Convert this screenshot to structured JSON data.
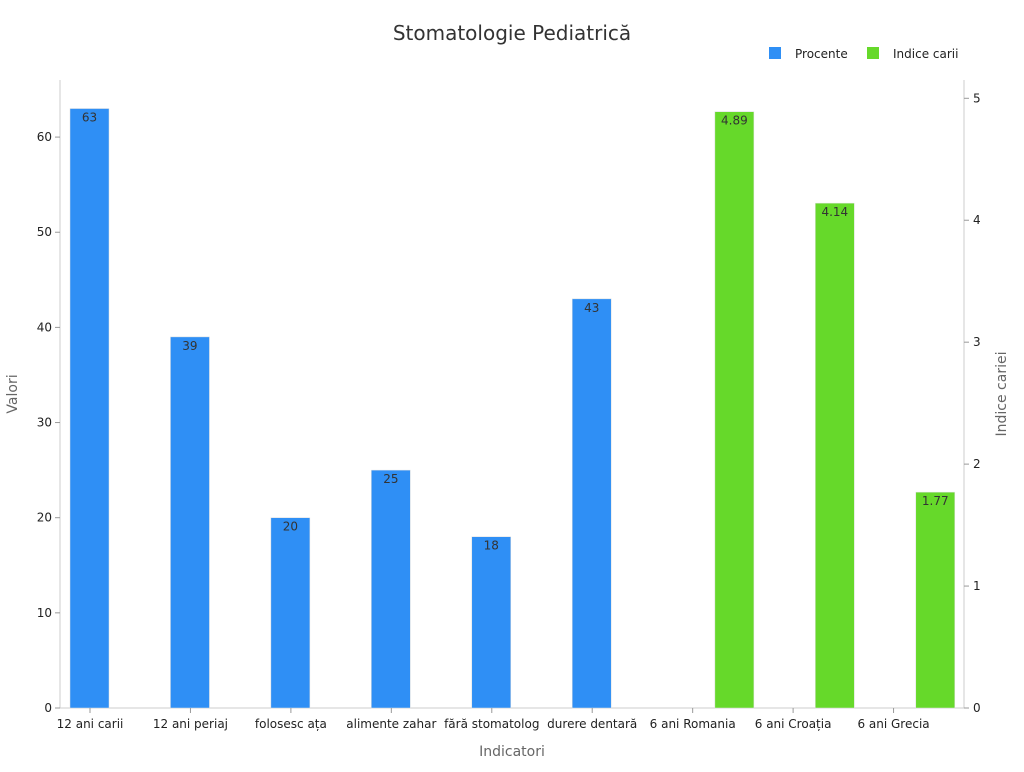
{
  "chart_data": {
    "type": "bar",
    "title": "Stomatologie Pediatrică",
    "xlabel": "Indicatori",
    "ylabel": "Valori",
    "y2label": "Indice cariei",
    "ylim": [
      0,
      66
    ],
    "y2lim": [
      0,
      5.15
    ],
    "yticks": [
      0,
      10,
      20,
      30,
      40,
      50,
      60
    ],
    "y2ticks": [
      0,
      1,
      2,
      3,
      4,
      5
    ],
    "grid": false,
    "legend_position": "top-right",
    "categories": [
      "12 ani carii",
      "12 ani periaj",
      "folosesc ața",
      "alimente zahar",
      "fără stomatolog",
      "durere dentară",
      "6 ani Romania",
      "6 ani Croația",
      "6 ani Grecia"
    ],
    "series": [
      {
        "name": "Procente",
        "axis": "left",
        "color": "#2f8ff5",
        "values": [
          63,
          39,
          20,
          25,
          18,
          43,
          null,
          null,
          null
        ],
        "labels": [
          "63",
          "39",
          "20",
          "25",
          "18",
          "43",
          "",
          "",
          ""
        ]
      },
      {
        "name": "Indice carii",
        "axis": "right",
        "color": "#66d92a",
        "values": [
          null,
          null,
          null,
          null,
          null,
          null,
          4.89,
          4.14,
          1.77
        ],
        "labels": [
          "",
          "",
          "",
          "",
          "",
          "",
          "4.89",
          "4.14",
          "1.77"
        ]
      }
    ]
  }
}
